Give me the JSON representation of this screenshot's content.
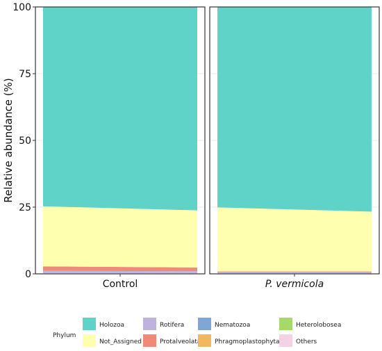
{
  "chart_data": {
    "type": "area",
    "ylabel": "Relative abundance (%)",
    "ylim": [
      0,
      100
    ],
    "yticks": [
      0,
      25,
      50,
      75,
      100
    ],
    "grid": true,
    "panels": [
      {
        "label": "Control",
        "italic": false,
        "stack": [
          {
            "name": "Others",
            "start": 0.3,
            "end": 0.3
          },
          {
            "name": "Rotifera",
            "start": 0.8,
            "end": 0.7
          },
          {
            "name": "Protalveolata",
            "start": 1.7,
            "end": 1.4
          },
          {
            "name": "Not_Assigned",
            "start": 22.5,
            "end": 21.4
          },
          {
            "name": "Holozoa",
            "start": 74.7,
            "end": 76.2
          }
        ]
      },
      {
        "label": "P. vermicola",
        "italic": true,
        "stack": [
          {
            "name": "Others",
            "start": 0.2,
            "end": 0.2
          },
          {
            "name": "Rotifera",
            "start": 0.6,
            "end": 0.6
          },
          {
            "name": "Protalveolata",
            "start": 0.1,
            "end": 0.1
          },
          {
            "name": "Not_Assigned",
            "start": 24.0,
            "end": 22.4
          },
          {
            "name": "Holozoa",
            "start": 75.1,
            "end": 76.7
          }
        ]
      }
    ],
    "legend": {
      "title": "Phylum",
      "position": "bottom",
      "entries": [
        {
          "name": "Holozoa",
          "color": "#5fd3c8"
        },
        {
          "name": "Not_Assigned",
          "color": "#ffffb0"
        },
        {
          "name": "Rotifera",
          "color": "#bdb3dd"
        },
        {
          "name": "Protalveolata",
          "color": "#f08a78"
        },
        {
          "name": "Nematozoa",
          "color": "#7ea6d6"
        },
        {
          "name": "Phragmoplastophyta",
          "color": "#f1b860"
        },
        {
          "name": "Heterolobosea",
          "color": "#a6d96a"
        },
        {
          "name": "Others",
          "color": "#f2d2e4"
        }
      ]
    }
  }
}
